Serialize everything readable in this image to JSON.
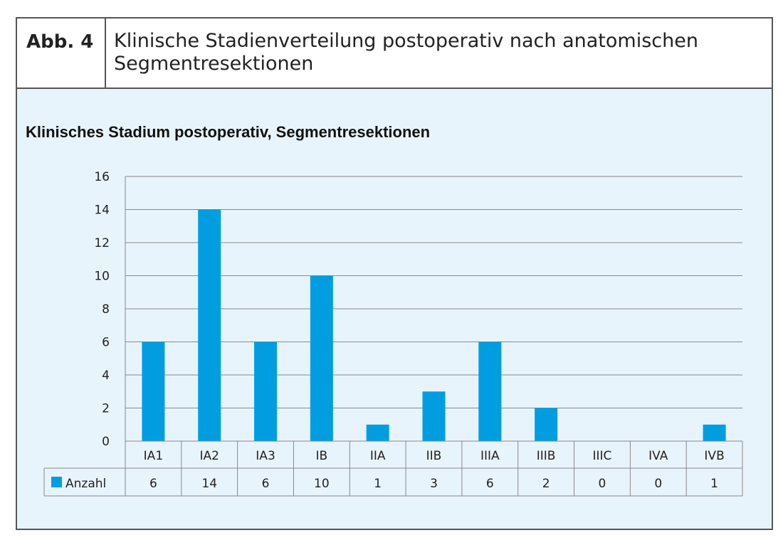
{
  "figure": {
    "label": "Abb. 4",
    "title": "Klinische Stadienverteilung postoperativ nach anatomischen Segmentresektionen"
  },
  "chart_data": {
    "type": "bar",
    "title": "Klinisches Stadium postoperativ, Segmentresektionen",
    "categories": [
      "IA1",
      "IA2",
      "IA3",
      "IB",
      "IIA",
      "IIB",
      "IIIA",
      "IIIB",
      "IIIC",
      "IVA",
      "IVB"
    ],
    "series": [
      {
        "name": "Anzahl",
        "values": [
          6,
          14,
          6,
          10,
          1,
          3,
          6,
          2,
          0,
          0,
          1
        ],
        "color": "#009ee0"
      }
    ],
    "ylim": [
      0,
      16
    ],
    "yticks": [
      0,
      2,
      4,
      6,
      8,
      10,
      12,
      14,
      16
    ],
    "grid": true,
    "legend": "data-table"
  }
}
